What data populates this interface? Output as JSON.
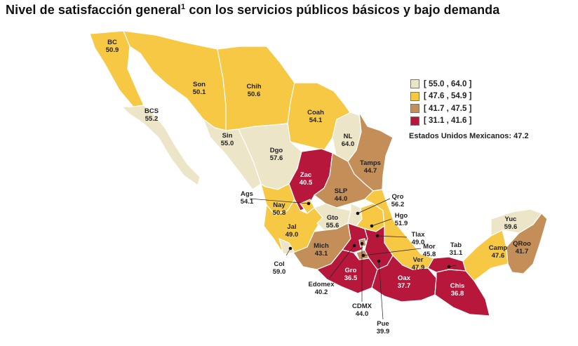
{
  "title": {
    "text": "Nivel de satisfacción general",
    "sup": "1",
    "text_after": "con los servicios públicos básicos y bajo demanda"
  },
  "legend": [
    {
      "label": "[ 55.0 , 64.0 ]",
      "color": "#ede5c8"
    },
    {
      "label": "[ 47.6 , 54.9 ]",
      "color": "#f7c843"
    },
    {
      "label": "[ 41.7 , 47.5 ]",
      "color": "#c48e59"
    },
    {
      "label": "[ 31.1 , 41.6 ]",
      "color": "#b8173c"
    }
  ],
  "national": {
    "label": "Estados Unidos Mexicanos:",
    "value": "47.2"
  },
  "states": [
    {
      "name": "BC",
      "value": "50.9",
      "class": "yellow"
    },
    {
      "name": "BCS",
      "value": "55.2",
      "class": "cream"
    },
    {
      "name": "Son",
      "value": "50.1",
      "class": "yellow"
    },
    {
      "name": "Chih",
      "value": "50.6",
      "class": "yellow"
    },
    {
      "name": "Coah",
      "value": "54.1",
      "class": "yellow"
    },
    {
      "name": "NL",
      "value": "64.0",
      "class": "cream"
    },
    {
      "name": "Sin",
      "value": "55.0",
      "class": "cream"
    },
    {
      "name": "Dgo",
      "value": "57.6",
      "class": "cream"
    },
    {
      "name": "Tamps",
      "value": "44.7",
      "class": "brown"
    },
    {
      "name": "Zac",
      "value": "40.5",
      "class": "red"
    },
    {
      "name": "SLP",
      "value": "44.0",
      "class": "brown"
    },
    {
      "name": "Ags",
      "value": "54.1",
      "class": "yellow"
    },
    {
      "name": "Nay",
      "value": "50.8",
      "class": "yellow"
    },
    {
      "name": "Qro",
      "value": "56.2",
      "class": "cream"
    },
    {
      "name": "Jal",
      "value": "49.0",
      "class": "yellow"
    },
    {
      "name": "Gto",
      "value": "55.6",
      "class": "cream"
    },
    {
      "name": "Hgo",
      "value": "51.9",
      "class": "yellow"
    },
    {
      "name": "Yuc",
      "value": "59.6",
      "class": "cream"
    },
    {
      "name": "Tlax",
      "value": "49.0",
      "class": "yellow"
    },
    {
      "name": "Mich",
      "value": "43.1",
      "class": "brown"
    },
    {
      "name": "Mor",
      "value": "45.8",
      "class": "brown"
    },
    {
      "name": "Tab",
      "value": "31.1",
      "class": "red"
    },
    {
      "name": "Col",
      "value": "59.0",
      "class": "cream"
    },
    {
      "name": "Camp",
      "value": "47.6",
      "class": "yellow"
    },
    {
      "name": "QRoo",
      "value": "41.7",
      "class": "brown"
    },
    {
      "name": "Ver",
      "value": "47.9",
      "class": "yellow"
    },
    {
      "name": "Gro",
      "value": "36.5",
      "class": "red"
    },
    {
      "name": "Oax",
      "value": "37.7",
      "class": "red"
    },
    {
      "name": "Chis",
      "value": "36.8",
      "class": "red"
    },
    {
      "name": "Edomex",
      "value": "40.2",
      "class": "red"
    },
    {
      "name": "CDMX",
      "value": "44.0",
      "class": "brown"
    },
    {
      "name": "Pue",
      "value": "39.9",
      "class": "red"
    }
  ]
}
